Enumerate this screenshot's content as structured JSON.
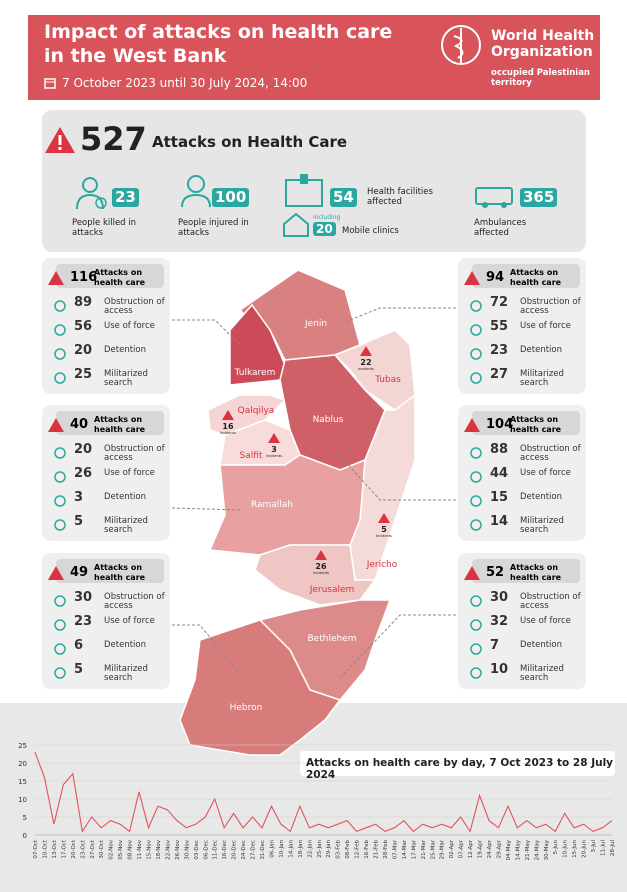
{
  "header": {
    "title": "Impact of attacks on health care in the West Bank",
    "date": "7 October  2023 until 30 July 2024, 14:00",
    "org": "World Health Organization",
    "region": "occupied Palestinian territory"
  },
  "summary": {
    "total": 527,
    "label": "Attacks on Health Care",
    "stats": [
      {
        "value": 23,
        "label": "People killed in attacks"
      },
      {
        "value": 100,
        "label": "People injured in attacks"
      },
      {
        "value": 54,
        "label": "Health facilities affected"
      },
      {
        "value": 365,
        "label": "Ambulances affected"
      }
    ],
    "mobile": {
      "note": "including",
      "value": 20,
      "label": "Mobile clinics"
    }
  },
  "regions": [
    {
      "total": 116,
      "label": "Attacks on health care",
      "items": [
        {
          "value": 89,
          "label": "Obstruction of access"
        },
        {
          "value": 56,
          "label": "Use of force"
        },
        {
          "value": 20,
          "label": "Detention"
        },
        {
          "value": 25,
          "label": "Militarized search"
        }
      ]
    },
    {
      "total": 40,
      "label": "Attacks on health care",
      "items": [
        {
          "value": 20,
          "label": "Obstruction of access"
        },
        {
          "value": 26,
          "label": "Use of force"
        },
        {
          "value": 3,
          "label": "Detention"
        },
        {
          "value": 5,
          "label": "Militarized search"
        }
      ]
    },
    {
      "total": 49,
      "label": "Attacks on health care",
      "items": [
        {
          "value": 30,
          "label": "Obstruction of access"
        },
        {
          "value": 23,
          "label": "Use of force"
        },
        {
          "value": 6,
          "label": "Detention"
        },
        {
          "value": 5,
          "label": "Militarized search"
        }
      ]
    },
    {
      "total": 94,
      "label": "Attacks on health care",
      "items": [
        {
          "value": 72,
          "label": "Obstruction of access"
        },
        {
          "value": 55,
          "label": "Use of force"
        },
        {
          "value": 23,
          "label": "Detention"
        },
        {
          "value": 27,
          "label": "Militarized search"
        }
      ]
    },
    {
      "total": 104,
      "label": "Attacks on health care",
      "items": [
        {
          "value": 88,
          "label": "Obstruction of access"
        },
        {
          "value": 44,
          "label": "Use of force"
        },
        {
          "value": 15,
          "label": "Detention"
        },
        {
          "value": 14,
          "label": "Militarized search"
        }
      ]
    },
    {
      "total": 52,
      "label": "Attacks on health care",
      "items": [
        {
          "value": 30,
          "label": "Obstruction of access"
        },
        {
          "value": 32,
          "label": "Use of force"
        },
        {
          "value": 7,
          "label": "Detention"
        },
        {
          "value": 10,
          "label": "Militarized search"
        }
      ]
    }
  ],
  "map_labels": [
    {
      "name": "Jenin"
    },
    {
      "name": "Tulkarem"
    },
    {
      "name": "Tubas",
      "count": 22,
      "unit": "Incidents"
    },
    {
      "name": "Qalqilya",
      "count": 16,
      "unit": "Incidents"
    },
    {
      "name": "Nablus"
    },
    {
      "name": "Salfit",
      "count": 3,
      "unit": "Incidents"
    },
    {
      "name": "Ramallah"
    },
    {
      "name": "Jericho",
      "count": 5,
      "unit": "Incidents"
    },
    {
      "name": "Jerusalem",
      "count": 26,
      "unit": "Incidents"
    },
    {
      "name": "Bethlehem"
    },
    {
      "name": "Hebron"
    }
  ],
  "chart": {
    "type": "line",
    "title": "Attacks on health care by day, 7 Oct 2023 to 28 July 2024",
    "categories": [
      "07-Oct",
      "10-Oct",
      "13-Oct",
      "17-Oct",
      "20-Oct",
      "23-Oct",
      "27-Oct",
      "30-Oct",
      "02-Nov",
      "05-Nov",
      "08-Nov",
      "11-Nov",
      "15-Nov",
      "18-Nov",
      "22-Nov",
      "26-Nov",
      "30-Nov",
      "03-Dec",
      "06-Dec",
      "11-Dec",
      "16-Dec",
      "20-Dec",
      "24-Dec",
      "27-Dec",
      "31-Dec",
      "06-Jan",
      "10-Jan",
      "14-Jan",
      "18-Jan",
      "22-Jan",
      "25-Jan",
      "29-Jan",
      "03-Feb",
      "08-Feb",
      "12-Feb",
      "16-Feb",
      "21-Feb",
      "28-Feb",
      "07-Mar",
      "14-Mar",
      "17-Mar",
      "21-Mar",
      "25-Mar",
      "29-Mar",
      "02-Apr",
      "07-Apr",
      "12-Apr",
      "19-Apr",
      "24-Apr",
      "29-Apr",
      "04-May",
      "14-May",
      "21-May",
      "24-May",
      "30-May",
      "5-Jun",
      "10-Jun",
      "15-Jun",
      "20-Jun",
      "3-Jul",
      "11-Jul",
      "28-Jul"
    ],
    "series": [
      {
        "color": "#e0535b",
        "values": [
          23,
          16,
          3,
          14,
          17,
          1,
          5,
          2,
          4,
          3,
          1,
          12,
          2,
          8,
          7,
          4,
          2,
          3,
          5,
          10,
          2,
          6,
          2,
          5,
          2,
          8,
          3,
          1,
          8,
          2,
          3,
          2,
          3,
          4,
          1,
          2,
          3,
          1,
          2,
          4,
          1,
          3,
          2,
          3,
          2,
          5,
          1,
          11,
          4,
          2,
          8,
          2,
          4,
          2,
          3,
          1,
          6,
          2,
          3,
          1,
          2,
          4
        ]
      }
    ],
    "ylim": [
      0,
      25
    ],
    "yticks": [
      0,
      5,
      10,
      15,
      20,
      25
    ]
  }
}
